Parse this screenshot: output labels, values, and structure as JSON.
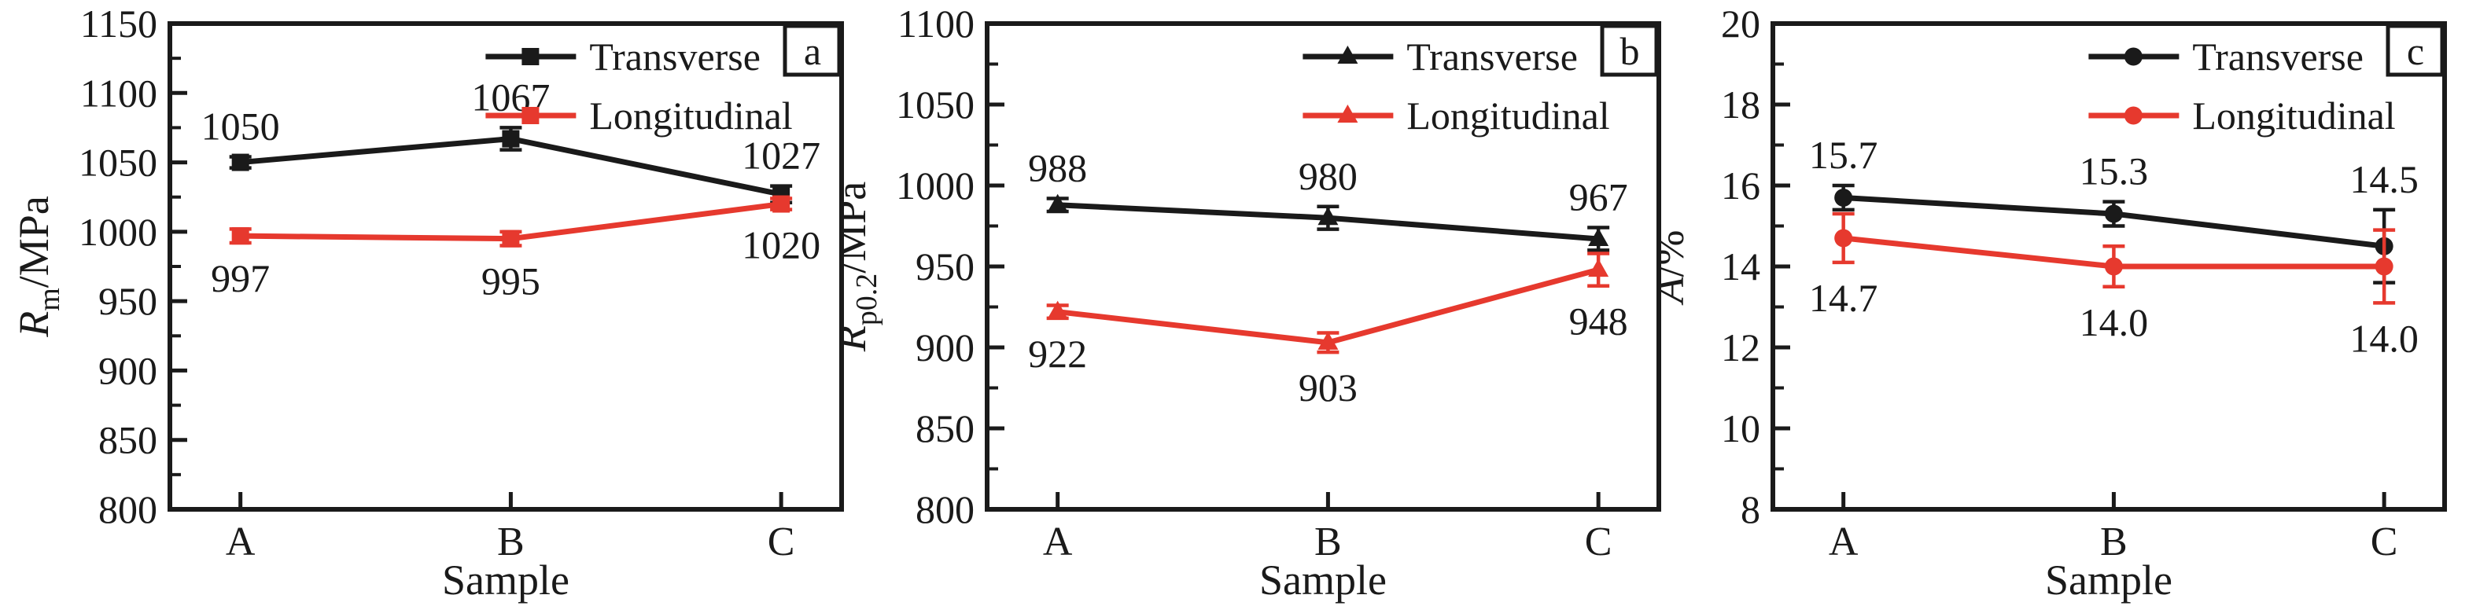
{
  "figure": {
    "description": "Three-panel line chart of tensile properties of samples A, B, C in transverse and longitudinal directions",
    "xlabel": "Sample",
    "categories": [
      "A",
      "B",
      "C"
    ],
    "legend": [
      "Transverse",
      "Longitudinal"
    ],
    "ink_color": "#1a1a1a",
    "background_color": "#ffffff",
    "colors": {
      "transverse": "#1a1a1a",
      "longitudinal": "#e6392e"
    }
  },
  "chart_data": [
    {
      "type": "line",
      "panel_label": "a",
      "xlabel": "Sample",
      "ylabel": "Rm/MPa",
      "ylabel_parts": {
        "var": "R",
        "sub": "m",
        "unit": "/MPa"
      },
      "categories": [
        "A",
        "B",
        "C"
      ],
      "ylim": [
        800,
        1150
      ],
      "ytick_step": 50,
      "ytick_labels": [
        "800",
        "850",
        "900",
        "950",
        "1000",
        "1050",
        "1100",
        "1150"
      ],
      "marker": "square",
      "grid": false,
      "legend_position": "top-right-inside",
      "series": [
        {
          "name": "Transverse",
          "color": "#1a1a1a",
          "values": [
            1050,
            1067,
            1027
          ],
          "errors": [
            4,
            8,
            6
          ],
          "point_labels": [
            "1050",
            "1067",
            "1027"
          ],
          "label_side": "above"
        },
        {
          "name": "Longitudinal",
          "color": "#e6392e",
          "values": [
            997,
            995,
            1020
          ],
          "errors": [
            5,
            5,
            4
          ],
          "point_labels": [
            "997",
            "995",
            "1020"
          ],
          "label_side": "below"
        }
      ]
    },
    {
      "type": "line",
      "panel_label": "b",
      "xlabel": "Sample",
      "ylabel": "Rp0.2/MPa",
      "ylabel_parts": {
        "var": "R",
        "sub": "p0.2",
        "unit": "/MPa"
      },
      "categories": [
        "A",
        "B",
        "C"
      ],
      "ylim": [
        800,
        1100
      ],
      "ytick_step": 50,
      "ytick_labels": [
        "800",
        "850",
        "900",
        "950",
        "1000",
        "1050",
        "1100"
      ],
      "marker": "triangle",
      "grid": false,
      "legend_position": "top-right-inside",
      "series": [
        {
          "name": "Transverse",
          "color": "#1a1a1a",
          "values": [
            988,
            980,
            967
          ],
          "errors": [
            4,
            7,
            7
          ],
          "point_labels": [
            "988",
            "980",
            "967"
          ],
          "label_side": "above"
        },
        {
          "name": "Longitudinal",
          "color": "#e6392e",
          "values": [
            922,
            903,
            948
          ],
          "errors": [
            4,
            6,
            10
          ],
          "point_labels": [
            "922",
            "903",
            "948"
          ],
          "label_side": "below"
        }
      ]
    },
    {
      "type": "line",
      "panel_label": "c",
      "xlabel": "Sample",
      "ylabel": "A/%",
      "ylabel_parts": {
        "var": "A",
        "sub": "",
        "unit": "/%"
      },
      "categories": [
        "A",
        "B",
        "C"
      ],
      "ylim": [
        8,
        20
      ],
      "ytick_step": 2,
      "ytick_labels": [
        "8",
        "10",
        "12",
        "14",
        "16",
        "18",
        "20"
      ],
      "marker": "circle",
      "grid": false,
      "legend_position": "top-right-inside",
      "series": [
        {
          "name": "Transverse",
          "color": "#1a1a1a",
          "values": [
            15.7,
            15.3,
            14.5
          ],
          "errors": [
            0.3,
            0.3,
            0.9
          ],
          "point_labels": [
            "15.7",
            "15.3",
            "14.5"
          ],
          "label_side": "above"
        },
        {
          "name": "Longitudinal",
          "color": "#e6392e",
          "values": [
            14.7,
            14.0,
            14.0
          ],
          "errors": [
            0.6,
            0.5,
            0.9
          ],
          "point_labels": [
            "14.7",
            "14.0",
            "14.0"
          ],
          "label_side": "below"
        }
      ]
    }
  ]
}
